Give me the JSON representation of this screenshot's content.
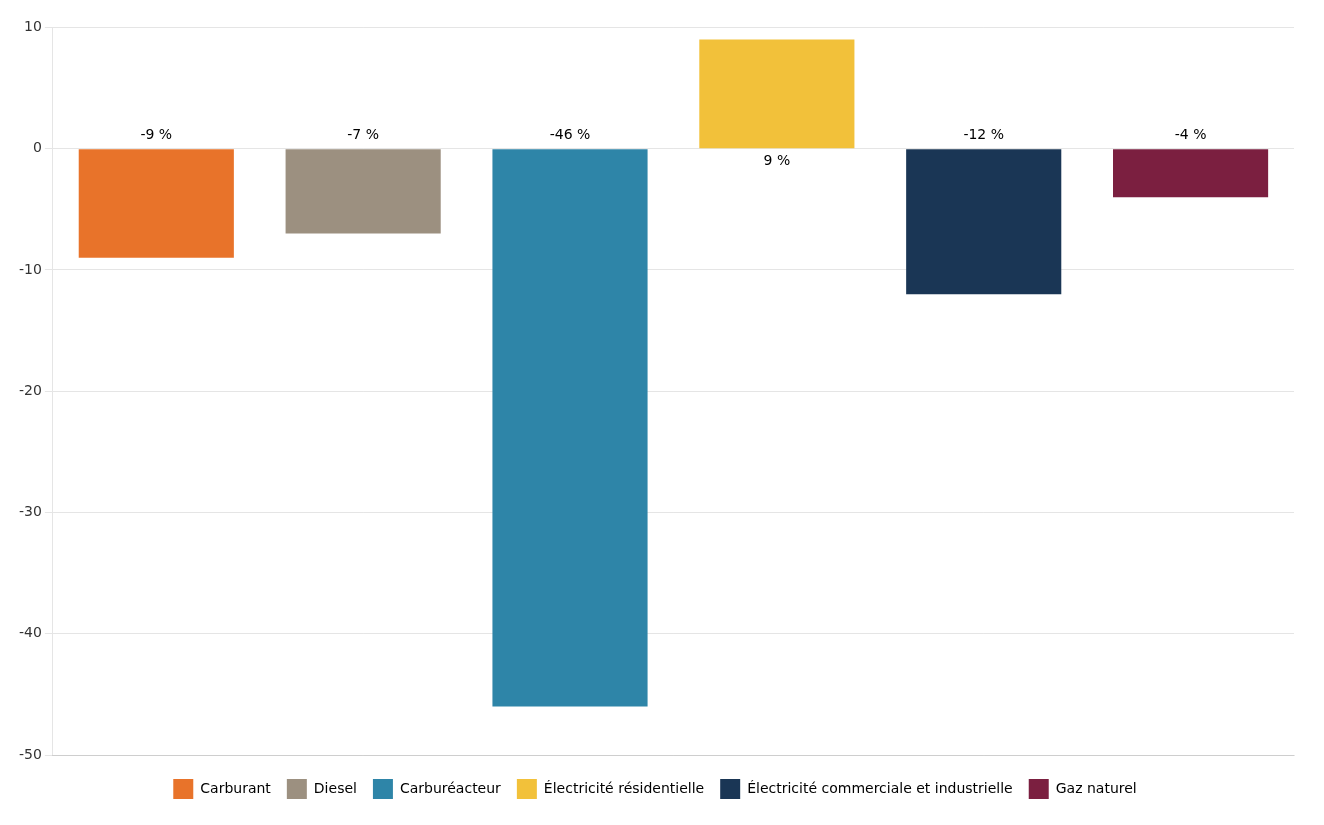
{
  "chart_data": {
    "type": "bar",
    "categories": [
      "Carburant",
      "Diesel",
      "Carburéacteur",
      "Électricité résidentielle",
      "Électricité commerciale et industrielle",
      "Gaz naturel"
    ],
    "values": [
      -9,
      -7,
      -46,
      9,
      -12,
      -4
    ],
    "value_labels": [
      "-9 %",
      "-7 %",
      "-46 %",
      "9 %",
      "-12 %",
      "-4 %"
    ],
    "colors": [
      "#E8732A",
      "#9C9080",
      "#2E85A8",
      "#F2C13A",
      "#1A3655",
      "#7B1F40"
    ],
    "ylim": [
      -50,
      10
    ],
    "yticks": [
      -50,
      -40,
      -30,
      -20,
      -10,
      0,
      10
    ],
    "grid": true,
    "legend": "bottom",
    "data_labels": true,
    "tick_labels": "y"
  }
}
